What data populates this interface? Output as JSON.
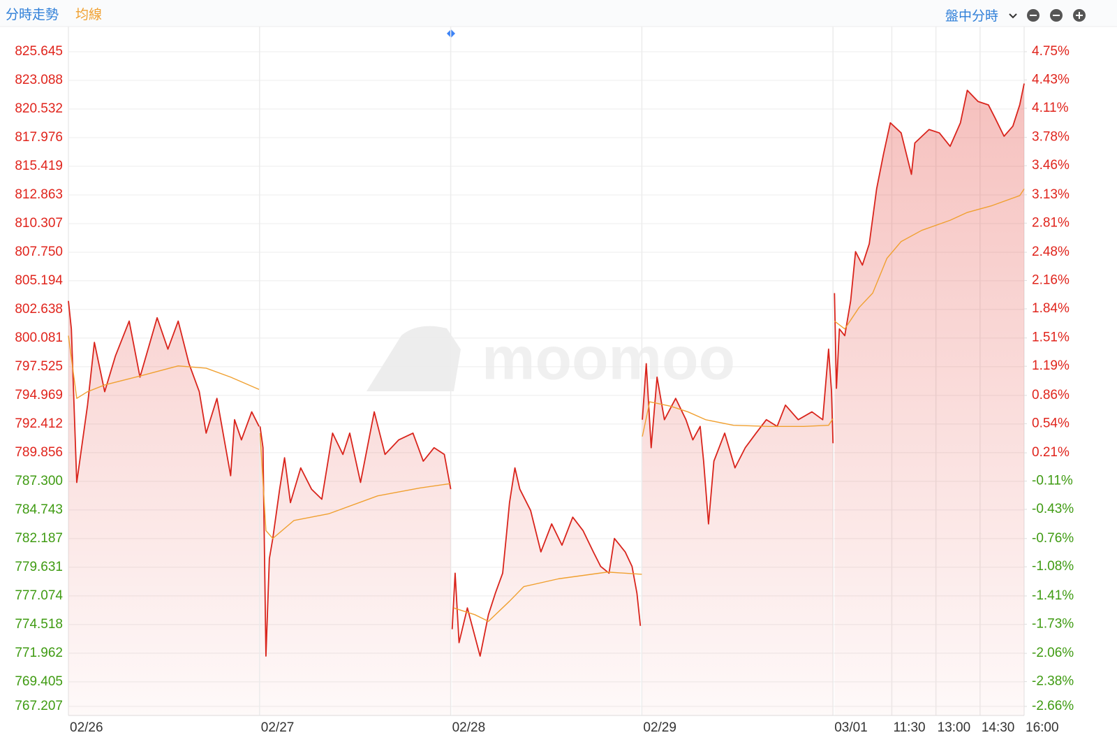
{
  "chart_data": {
    "type": "line",
    "legend": [
      "分時走勢",
      "均線"
    ],
    "toolbar_mode": "盤中分時",
    "watermark": "moomoo",
    "up_color": "#e0241c",
    "down_color": "#3f9b12",
    "grid": true,
    "xlim": [
      0,
      1950
    ],
    "xticks": [
      {
        "value": 0,
        "label": "02/26"
      },
      {
        "value": 390,
        "label": "02/27"
      },
      {
        "value": 780,
        "label": "02/28"
      },
      {
        "value": 1170,
        "label": "02/29"
      },
      {
        "value": 1560,
        "label": "03/01"
      },
      {
        "value": 1680,
        "label": "11:30"
      },
      {
        "value": 1770,
        "label": "13:00"
      },
      {
        "value": 1860,
        "label": "14:30"
      },
      {
        "value": 1950,
        "label": "16:00"
      }
    ],
    "ylim": [
      766.4,
      827.89
    ],
    "yticks": [
      825.645,
      823.088,
      820.532,
      817.976,
      815.419,
      812.863,
      810.307,
      {
        "value": 807.75,
        "label": "807.750"
      },
      805.194,
      802.638,
      800.081,
      797.525,
      794.969,
      792.412,
      789.856,
      {
        "value": 787.3,
        "label": "787.300"
      },
      784.743,
      782.187,
      779.631,
      777.074,
      774.518,
      771.962,
      769.405,
      767.207
    ],
    "y2lim": [
      -2.763,
      5.035
    ],
    "y2ticks": [
      {
        "value": 4.75,
        "label": "4.75%"
      },
      {
        "value": 4.43,
        "label": "4.43%"
      },
      {
        "value": 4.11,
        "label": "4.11%"
      },
      {
        "value": 3.78,
        "label": "3.78%"
      },
      {
        "value": 3.46,
        "label": "3.46%"
      },
      {
        "value": 3.13,
        "label": "3.13%"
      },
      {
        "value": 2.81,
        "label": "2.81%"
      },
      {
        "value": 2.48,
        "label": "2.48%"
      },
      {
        "value": 2.16,
        "label": "2.16%"
      },
      {
        "value": 1.84,
        "label": "1.84%"
      },
      {
        "value": 1.51,
        "label": "1.51%"
      },
      {
        "value": 1.19,
        "label": "1.19%"
      },
      {
        "value": 0.86,
        "label": "0.86%"
      },
      {
        "value": 0.54,
        "label": "0.54%"
      },
      {
        "value": 0.21,
        "label": "0.21%"
      },
      {
        "value": -0.11,
        "label": "-0.11%"
      },
      {
        "value": -0.43,
        "label": "-0.43%"
      },
      {
        "value": -0.76,
        "label": "-0.76%"
      },
      {
        "value": -1.08,
        "label": "-1.08%"
      },
      {
        "value": -1.41,
        "label": "-1.41%"
      },
      {
        "value": -1.73,
        "label": "-1.73%"
      },
      {
        "value": -2.06,
        "label": "-2.06%"
      },
      {
        "value": -2.38,
        "label": "-2.38%"
      },
      {
        "value": -2.66,
        "label": "-2.66%"
      }
    ],
    "series": [
      {
        "name": "分時走勢",
        "color": "#d9241c",
        "legend_color": "#2f7fd8",
        "x": [
          0,
          6,
          17,
          39,
          53,
          74,
          96,
          124,
          146,
          181,
          203,
          224,
          246,
          267,
          281,
          303,
          331,
          339,
          353,
          374,
          389,
          null,
          391,
          397,
          403,
          410,
          417,
          431,
          441,
          453,
          474,
          496,
          517,
          539,
          560,
          574,
          596,
          624,
          646,
          674,
          703,
          724,
          746,
          767,
          780,
          null,
          783,
          789,
          797,
          814,
          840,
          857,
          871,
          886,
          893,
          900,
          911,
          921,
          943,
          964,
          986,
          1007,
          1029,
          1050,
          1071,
          1086,
          1103,
          1114,
          1136,
          1150,
          1160,
          1167,
          null,
          1171,
          1179,
          1189,
          1201,
          1216,
          1239,
          1260,
          1274,
          1289,
          1296,
          1306,
          1317,
          1339,
          1360,
          1381,
          1403,
          1424,
          1446,
          1463,
          1489,
          1517,
          1539,
          1551,
          1557,
          1560,
          null,
          1563,
          1567,
          1573,
          1584,
          1596,
          1606,
          1620,
          1634,
          1649,
          1663,
          1677,
          1699,
          1720,
          1727,
          1756,
          1777,
          1799,
          1820,
          1834,
          1856,
          1877,
          1891,
          1909,
          1927,
          1941,
          1950
        ],
        "values": [
          803.4,
          800.9,
          787.2,
          794.1,
          799.7,
          795.3,
          798.5,
          801.6,
          796.6,
          801.9,
          799.1,
          801.6,
          797.8,
          795.3,
          791.6,
          794.7,
          787.8,
          792.8,
          791.0,
          793.5,
          792.2,
          null,
          792.2,
          790.3,
          771.7,
          780.4,
          782.2,
          786.6,
          789.4,
          785.4,
          788.5,
          786.6,
          785.7,
          791.6,
          789.7,
          791.6,
          787.2,
          793.5,
          789.7,
          791.0,
          791.6,
          789.1,
          790.3,
          789.7,
          786.6,
          null,
          774.1,
          779.1,
          772.9,
          776.0,
          771.7,
          775.4,
          777.3,
          779.1,
          782.2,
          785.4,
          788.5,
          786.6,
          784.7,
          781.0,
          783.5,
          781.6,
          784.1,
          782.9,
          781.0,
          779.7,
          779.1,
          782.2,
          781.0,
          779.7,
          777.3,
          774.4,
          null,
          792.8,
          797.8,
          790.3,
          796.6,
          792.8,
          794.7,
          792.8,
          791.0,
          792.2,
          789.1,
          783.5,
          789.1,
          791.6,
          788.5,
          790.3,
          791.6,
          792.8,
          792.2,
          794.1,
          792.8,
          793.5,
          792.8,
          799.1,
          795.3,
          790.7,
          null,
          804.1,
          795.6,
          800.9,
          800.3,
          803.4,
          807.8,
          806.6,
          808.5,
          813.4,
          816.5,
          819.3,
          818.4,
          814.7,
          817.5,
          818.7,
          818.4,
          817.2,
          819.3,
          822.2,
          821.2,
          820.9,
          819.7,
          818.1,
          819.0,
          820.9,
          822.8
        ]
      },
      {
        "name": "均線",
        "color": "#f0a030",
        "legend_color": "#f0a030",
        "x": [
          0,
          17,
          39,
          74,
          146,
          224,
          281,
          331,
          389,
          null,
          391,
          403,
          417,
          460,
          531,
          631,
          717,
          780,
          null,
          786,
          829,
          857,
          900,
          929,
          1000,
          1100,
          1170,
          null,
          1171,
          1186,
          1229,
          1264,
          1300,
          1357,
          1429,
          1500,
          1551,
          1560,
          null,
          1563,
          1584,
          1613,
          1641,
          1670,
          1699,
          1741,
          1799,
          1834,
          1884,
          1941,
          1950
        ],
        "values": [
          800.3,
          794.7,
          795.3,
          795.9,
          796.7,
          797.6,
          797.4,
          796.6,
          795.5,
          null,
          791.6,
          782.9,
          782.2,
          783.8,
          784.4,
          786.0,
          786.7,
          787.1,
          null,
          776.0,
          775.4,
          774.8,
          776.6,
          777.9,
          778.6,
          779.2,
          779.0,
          null,
          791.3,
          794.4,
          794.0,
          793.5,
          792.8,
          792.3,
          792.2,
          792.2,
          792.3,
          792.9,
          null,
          801.6,
          800.9,
          802.8,
          804.1,
          807.2,
          808.7,
          809.7,
          810.6,
          811.3,
          811.9,
          812.8,
          813.4
        ]
      }
    ]
  }
}
